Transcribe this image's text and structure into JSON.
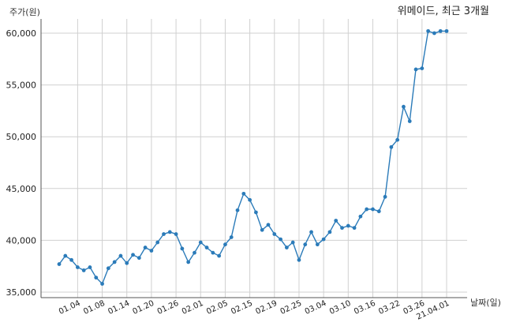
{
  "chart_data": {
    "type": "line",
    "title": "위메이드, 최근 3개월",
    "xlabel": "날짜(일)",
    "ylabel": "주가(원)",
    "ylim": [
      35000,
      61000
    ],
    "yticks": [
      35000,
      40000,
      45000,
      50000,
      55000,
      60000
    ],
    "ytick_labels": [
      "35,000",
      "40,000",
      "45,000",
      "50,000",
      "55,000",
      "60,000"
    ],
    "xtick_labels": [
      "01.04",
      "01.08",
      "01.14",
      "01.20",
      "01.26",
      "02.01",
      "02.05",
      "02.15",
      "02.19",
      "02.25",
      "03.04",
      "03.10",
      "03.16",
      "03.22",
      "03.26",
      "21.04.01"
    ],
    "xtick_positions": [
      3,
      7,
      11,
      15,
      19,
      23,
      27,
      31,
      35,
      39,
      43,
      47,
      51,
      55,
      59,
      63
    ],
    "grid": true,
    "color": "#2b7bb9",
    "series": [
      {
        "name": "",
        "x": [
          0,
          1,
          2,
          3,
          4,
          5,
          6,
          7,
          8,
          9,
          10,
          11,
          12,
          13,
          14,
          15,
          16,
          17,
          18,
          19,
          20,
          21,
          22,
          23,
          24,
          25,
          26,
          27,
          28,
          29,
          30,
          31,
          32,
          33,
          34,
          35,
          36,
          37,
          38,
          39,
          40,
          41,
          42,
          43,
          44,
          45,
          46,
          47,
          48,
          49,
          50,
          51,
          52,
          53,
          54,
          55,
          56,
          57,
          58,
          59,
          60,
          61,
          62,
          63
        ],
        "values": [
          37700,
          38500,
          38100,
          37400,
          37100,
          37400,
          36400,
          35800,
          37300,
          37900,
          38500,
          37800,
          38600,
          38300,
          39300,
          39000,
          39800,
          40600,
          40800,
          40600,
          39200,
          37900,
          38800,
          39800,
          39300,
          38800,
          38500,
          39600,
          40300,
          42900,
          44500,
          43900,
          42700,
          41000,
          41500,
          40600,
          40100,
          39300,
          39800,
          38100,
          39600,
          40800,
          39600,
          40100,
          40800,
          41900,
          41200,
          41400,
          41200,
          42300,
          43000,
          43000,
          42800,
          44200,
          49000,
          49700,
          52900,
          51500,
          56500,
          56600,
          60200,
          60000,
          60200,
          60200
        ]
      }
    ]
  }
}
